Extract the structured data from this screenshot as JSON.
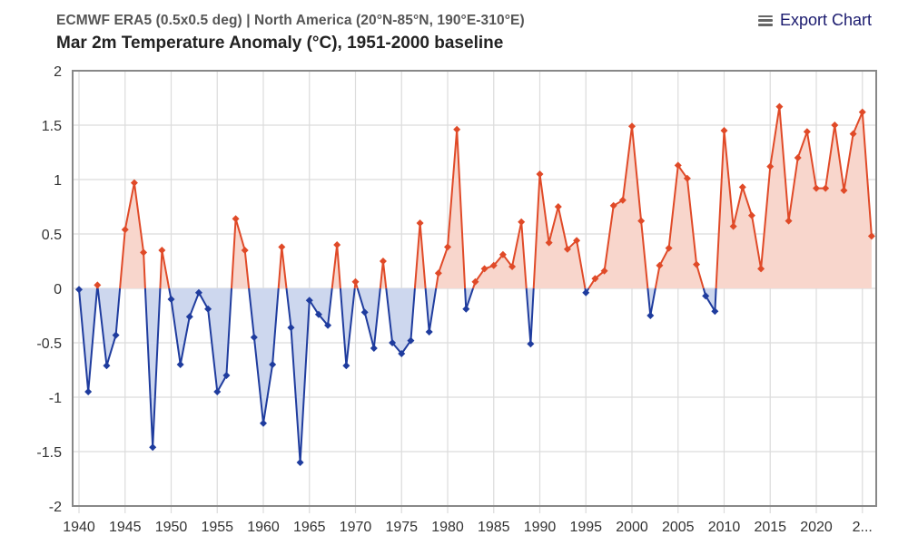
{
  "header": {
    "subtitle": "ECMWF ERA5 (0.5x0.5 deg) | North America (20°N-85°N, 190°E-310°E)",
    "title": "Mar 2m Temperature Anomaly (°C), 1951-2000 baseline",
    "export_label": "Export Chart",
    "export_icon": "menu-icon"
  },
  "colors": {
    "positive_line": "#e04a28",
    "positive_fill": "#f8d6cc",
    "negative_line": "#1f3c9e",
    "negative_fill": "#cdd7ee",
    "grid": "#dcdcdc",
    "axis": "#888888"
  },
  "chart_data": {
    "type": "area",
    "title": "Mar 2m Temperature Anomaly (°C), 1951-2000 baseline",
    "subtitle": "ECMWF ERA5 (0.5x0.5 deg) | North America (20°N-85°N, 190°E-310°E)",
    "xlabel": "",
    "ylabel": "",
    "xlim": [
      1940,
      2026
    ],
    "ylim": [
      -2,
      2
    ],
    "grid": true,
    "threshold": 0,
    "x_tick_labels": [
      "1940",
      "1945",
      "1950",
      "1955",
      "1960",
      "1965",
      "1970",
      "1975",
      "1980",
      "1985",
      "1990",
      "1995",
      "2000",
      "2005",
      "2010",
      "2015",
      "2020",
      "2..."
    ],
    "x_tick_values": [
      1940,
      1945,
      1950,
      1955,
      1960,
      1965,
      1970,
      1975,
      1980,
      1985,
      1990,
      1995,
      2000,
      2005,
      2010,
      2015,
      2020,
      2025
    ],
    "y_tick_labels": [
      "2",
      "1.5",
      "1",
      "0.5",
      "0",
      "-0.5",
      "-1",
      "-1.5",
      "-2"
    ],
    "y_tick_values": [
      2,
      1.5,
      1,
      0.5,
      0,
      -0.5,
      -1,
      -1.5,
      -2
    ],
    "x": [
      1940,
      1941,
      1942,
      1943,
      1944,
      1945,
      1946,
      1947,
      1948,
      1949,
      1950,
      1951,
      1952,
      1953,
      1954,
      1955,
      1956,
      1957,
      1958,
      1959,
      1960,
      1961,
      1962,
      1963,
      1964,
      1965,
      1966,
      1967,
      1968,
      1969,
      1970,
      1971,
      1972,
      1973,
      1974,
      1975,
      1976,
      1977,
      1978,
      1979,
      1980,
      1981,
      1982,
      1983,
      1984,
      1985,
      1986,
      1987,
      1988,
      1989,
      1990,
      1991,
      1992,
      1993,
      1994,
      1995,
      1996,
      1997,
      1998,
      1999,
      2000,
      2001,
      2002,
      2003,
      2004,
      2005,
      2006,
      2007,
      2008,
      2009,
      2010,
      2011,
      2012,
      2013,
      2014,
      2015,
      2016,
      2017,
      2018,
      2019,
      2020,
      2021,
      2022,
      2023,
      2024,
      2025,
      2026
    ],
    "series": [
      {
        "name": "Mar 2m Temperature Anomaly",
        "values": [
          -0.01,
          -0.95,
          0.03,
          -0.71,
          -0.43,
          0.54,
          0.97,
          0.33,
          -1.46,
          0.35,
          -0.1,
          -0.7,
          -0.26,
          -0.04,
          -0.19,
          -0.95,
          -0.8,
          0.64,
          0.35,
          -0.45,
          -1.24,
          -0.7,
          0.38,
          -0.36,
          -1.6,
          -0.11,
          -0.24,
          -0.34,
          0.4,
          -0.71,
          0.06,
          -0.22,
          -0.55,
          0.25,
          -0.5,
          -0.6,
          -0.48,
          0.6,
          -0.4,
          0.14,
          0.38,
          1.46,
          -0.19,
          0.06,
          0.18,
          0.21,
          0.31,
          0.2,
          0.61,
          -0.51,
          1.05,
          0.42,
          0.75,
          0.36,
          0.44,
          -0.04,
          0.09,
          0.16,
          0.76,
          0.81,
          1.49,
          0.62,
          -0.25,
          0.21,
          0.37,
          1.13,
          1.01,
          0.22,
          -0.07,
          -0.21,
          1.45,
          0.57,
          0.93,
          0.67,
          0.18,
          1.12,
          1.67,
          0.62,
          1.2,
          1.44,
          0.92,
          0.92,
          1.5,
          0.9,
          1.42,
          1.62,
          0.48
        ]
      }
    ]
  }
}
